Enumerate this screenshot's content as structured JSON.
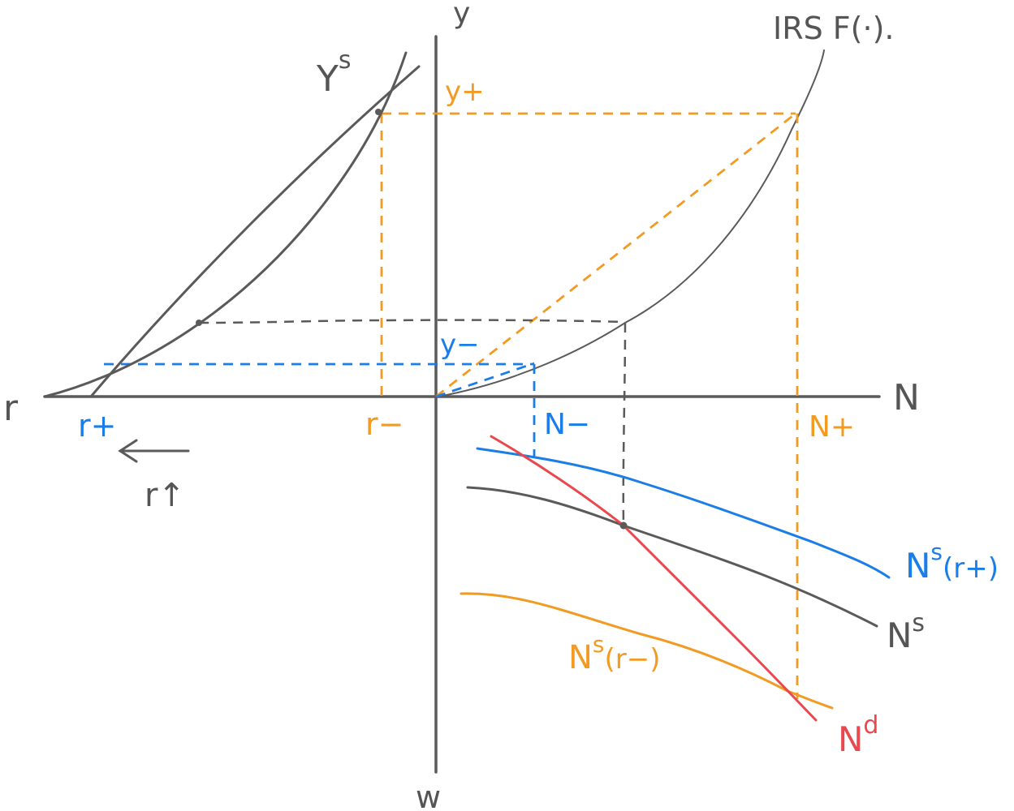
{
  "axes": {
    "top": "y",
    "left": "r",
    "right": "N",
    "bottom": "w"
  },
  "curves": {
    "production": "IRS F(·).",
    "ys": "Y",
    "ys_sup": "s",
    "ns": "N",
    "ns_sup": "s",
    "ns_high": "N",
    "ns_high_sup": "s",
    "ns_high_arg": "(r+)",
    "ns_low": "N",
    "ns_low_sup": "s",
    "ns_low_arg": "(r−)",
    "nd": "N",
    "nd_sup": "d"
  },
  "ticks": {
    "r_plus": "r+",
    "r_minus": "r−",
    "y_plus": "y+",
    "y_minus": "y−",
    "n_minus": "N−",
    "n_plus": "N+"
  },
  "annotation": {
    "r_up": "r↑"
  },
  "colors": {
    "gray": "#5a5a5a",
    "orange": "#f29b22",
    "blue": "#1a7de8",
    "red": "#e8484e"
  }
}
